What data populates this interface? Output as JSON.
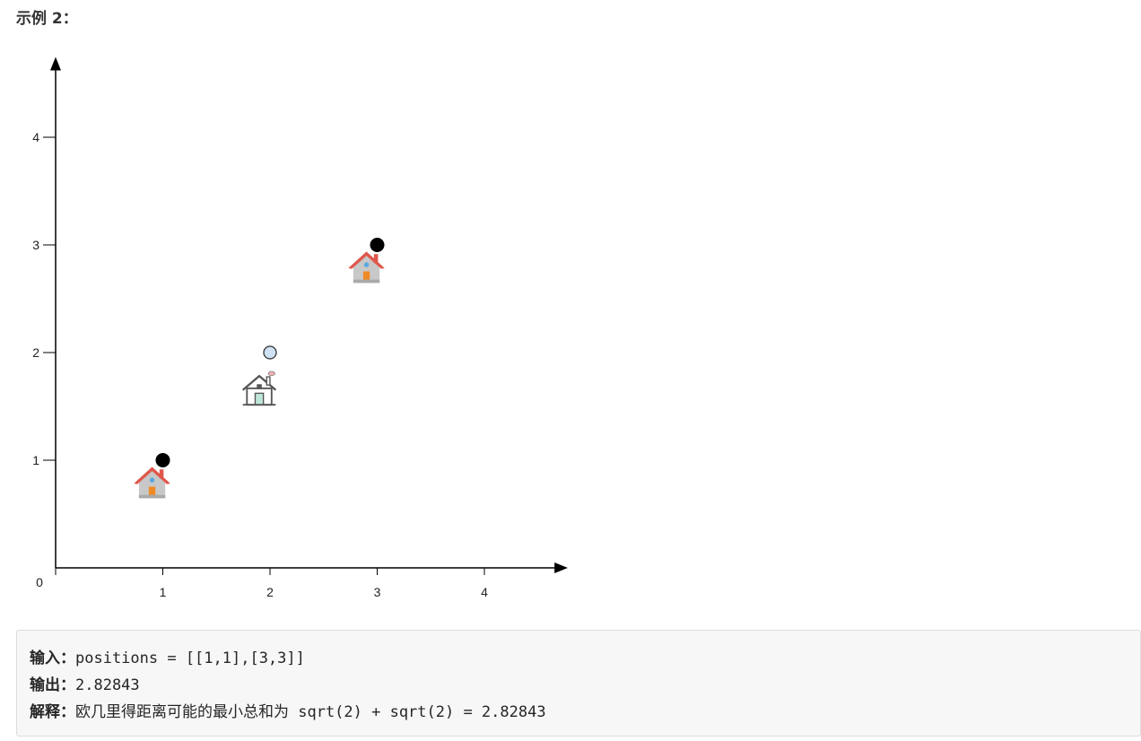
{
  "heading": "示例 2：",
  "chart_data": {
    "type": "scatter",
    "xlim": [
      0,
      4.7
    ],
    "ylim": [
      0,
      4.7
    ],
    "x_ticks": [
      "1",
      "2",
      "3",
      "4"
    ],
    "y_ticks": [
      "0",
      "1",
      "2",
      "3",
      "4"
    ],
    "grid": false,
    "series": [
      {
        "points": [
          {
            "x": 1,
            "y": 1
          },
          {
            "x": 3,
            "y": 3
          }
        ],
        "marker": "filled-circle",
        "color": "#000000"
      },
      {
        "points": [
          {
            "x": 2,
            "y": 2
          }
        ],
        "marker": "hollow-circle",
        "color": "#cfe2f3"
      }
    ],
    "annotations": [
      {
        "x": 0.9,
        "y": 0.8,
        "icon": "house-icon"
      },
      {
        "x": 1.9,
        "y": 1.66,
        "icon": "service-center-icon"
      },
      {
        "x": 2.9,
        "y": 2.8,
        "icon": "house-icon"
      }
    ]
  },
  "example": {
    "input_label": "输入：",
    "input_value": "positions = [[1,1],[3,3]]",
    "output_label": "输出：",
    "output_value": "2.82843",
    "explain_label": "解释：",
    "explain_text": "欧几里得距离可能的最小总和为",
    "explain_formula": " sqrt(2) + sqrt(2) = 2.82843"
  }
}
